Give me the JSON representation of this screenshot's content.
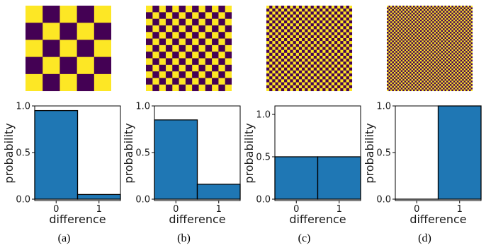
{
  "colors": {
    "dark": "#440154",
    "light": "#fde725",
    "bar": "#1f77b4",
    "bar_edge": "#000000"
  },
  "patterns": [
    {
      "tiles_per_side": 5
    },
    {
      "tiles_per_side": 13
    },
    {
      "tiles_per_side": 29
    },
    {
      "tiles_per_side": 49
    }
  ],
  "chart_data": [
    {
      "type": "bar",
      "categories": [
        "0",
        "1"
      ],
      "values": [
        0.95,
        0.05
      ],
      "xlabel": "difference",
      "ylabel": "probability",
      "ylim": [
        0,
        1
      ],
      "yticks": [
        "0.0",
        "0.5",
        "1.0"
      ],
      "caption": "(a)"
    },
    {
      "type": "bar",
      "categories": [
        "0",
        "1"
      ],
      "values": [
        0.85,
        0.16
      ],
      "xlabel": "difference",
      "ylabel": "probability",
      "ylim": [
        0,
        1
      ],
      "yticks": [
        "0.0",
        "0.5",
        "1.0"
      ],
      "caption": "(b)"
    },
    {
      "type": "bar",
      "categories": [
        "0",
        "1"
      ],
      "values": [
        0.5,
        0.5
      ],
      "xlabel": "difference",
      "ylabel": "probability",
      "ylim": [
        0,
        1.1
      ],
      "yticks": [
        "0.0",
        "0.5",
        "1.0"
      ],
      "caption": "(c)"
    },
    {
      "type": "bar",
      "categories": [
        "0",
        "1"
      ],
      "values": [
        0.0,
        1.0
      ],
      "xlabel": "difference",
      "ylabel": "probability",
      "ylim": [
        0,
        1
      ],
      "yticks": [
        "0.0",
        "0.5",
        "1.0"
      ],
      "caption": "(d)"
    }
  ]
}
